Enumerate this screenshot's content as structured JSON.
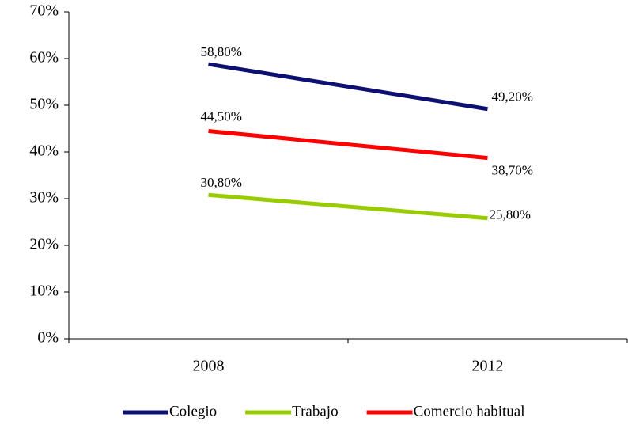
{
  "chart_data": {
    "type": "line",
    "categories": [
      "2008",
      "2012"
    ],
    "series": [
      {
        "name": "Colegio",
        "color": "#0d1070",
        "values": [
          58.8,
          49.2
        ],
        "value_labels": [
          "58,80%",
          "49,20%"
        ]
      },
      {
        "name": "Trabajo",
        "color": "#99cc00",
        "values": [
          30.8,
          25.8
        ],
        "value_labels": [
          "30,80%",
          "25,80%"
        ]
      },
      {
        "name": "Comercio habitual",
        "color": "#ff0000",
        "values": [
          44.5,
          38.7
        ],
        "value_labels": [
          "44,50%",
          "38,70%"
        ]
      }
    ],
    "ylim": [
      0,
      70
    ],
    "yticks": [
      {
        "value": 0,
        "label": "0%"
      },
      {
        "value": 10,
        "label": "10%"
      },
      {
        "value": 20,
        "label": "20%"
      },
      {
        "value": 30,
        "label": "30%"
      },
      {
        "value": 40,
        "label": "40%"
      },
      {
        "value": 50,
        "label": "50%"
      },
      {
        "value": 60,
        "label": "60%"
      },
      {
        "value": 70,
        "label": "70%"
      }
    ],
    "legend": "bottom"
  }
}
